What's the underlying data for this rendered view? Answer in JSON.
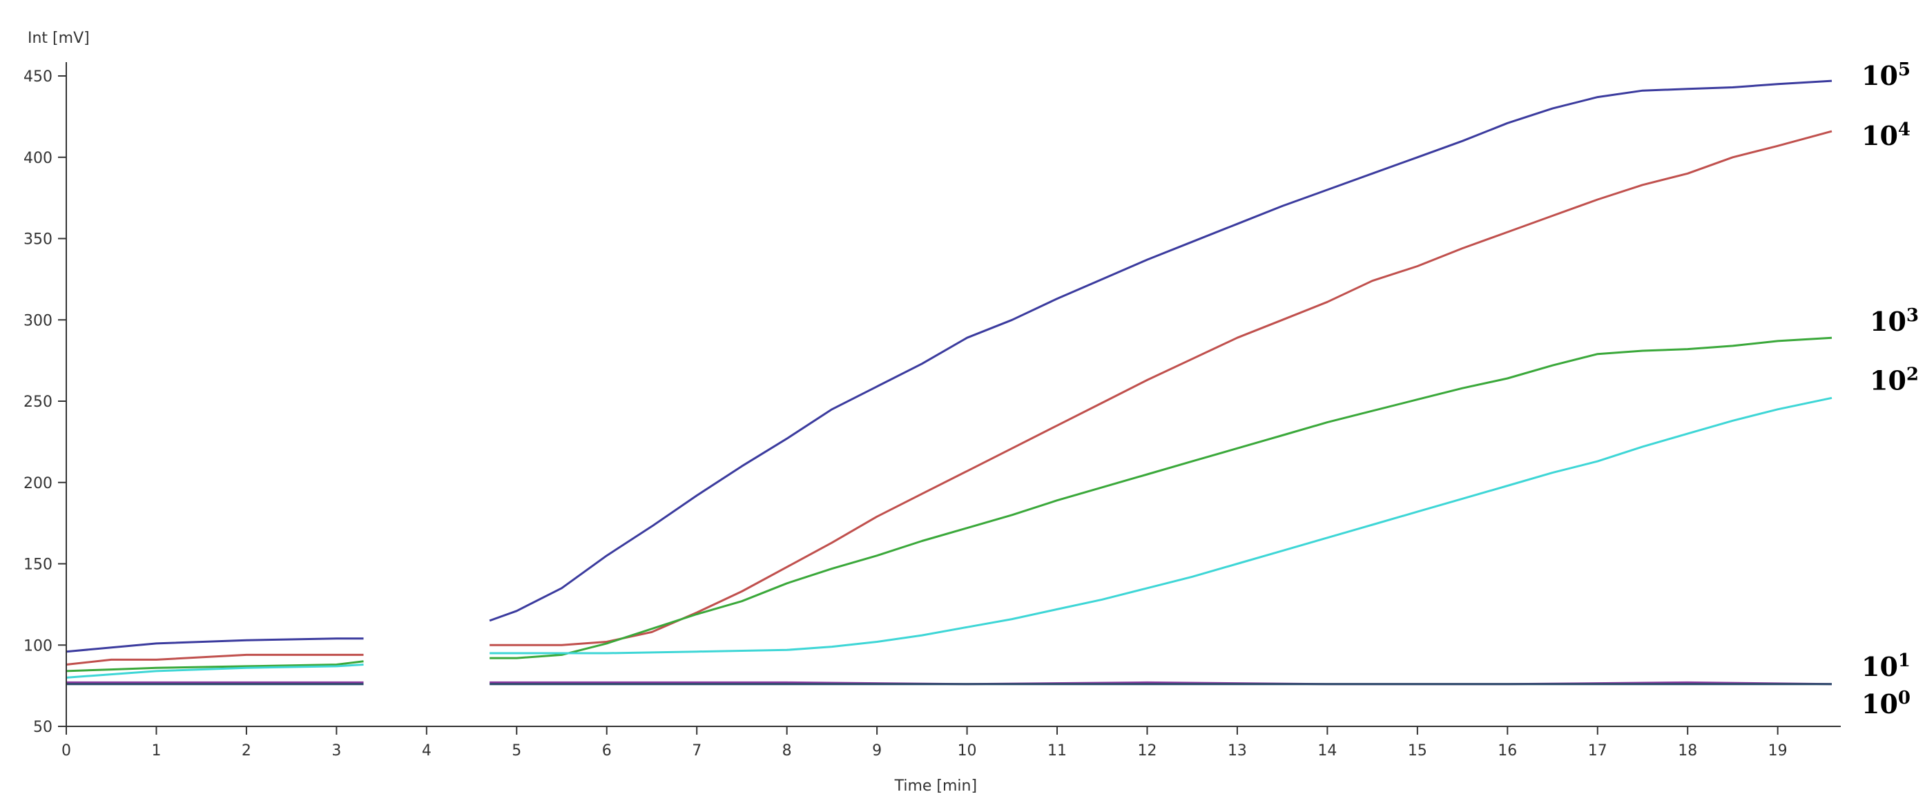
{
  "chart_data": {
    "type": "line",
    "xlabel": "Time [min]",
    "ylabel": "Int [mV]",
    "xlim": [
      0,
      19.7
    ],
    "ylim": [
      50,
      450
    ],
    "xticks": [
      0,
      1,
      2,
      3,
      4,
      5,
      6,
      7,
      8,
      9,
      10,
      11,
      12,
      13,
      14,
      15,
      16,
      17,
      18,
      19
    ],
    "yticks": [
      50,
      100,
      150,
      200,
      250,
      300,
      350,
      400,
      450
    ],
    "grid": false,
    "series": [
      {
        "name": "10^5",
        "label_base": "10",
        "label_exp": "5",
        "color": "#3b3b9e",
        "segments": [
          [
            [
              0,
              96
            ],
            [
              1,
              101
            ],
            [
              2,
              103
            ],
            [
              3,
              104
            ],
            [
              3.3,
              104
            ]
          ],
          [
            [
              4.7,
              115
            ],
            [
              5,
              121
            ],
            [
              5.5,
              135
            ],
            [
              6,
              155
            ],
            [
              6.5,
              173
            ],
            [
              7,
              192
            ],
            [
              7.5,
              210
            ],
            [
              8,
              227
            ],
            [
              8.5,
              245
            ],
            [
              9,
              259
            ],
            [
              9.5,
              273
            ],
            [
              10,
              289
            ],
            [
              10.5,
              300
            ],
            [
              11,
              313
            ],
            [
              11.5,
              325
            ],
            [
              12,
              337
            ],
            [
              12.5,
              348
            ],
            [
              13,
              359
            ],
            [
              13.5,
              370
            ],
            [
              14,
              380
            ],
            [
              14.5,
              390
            ],
            [
              15,
              400
            ],
            [
              15.5,
              410
            ],
            [
              16,
              421
            ],
            [
              16.5,
              430
            ],
            [
              17,
              437
            ],
            [
              17.5,
              441
            ],
            [
              18,
              442
            ],
            [
              18.5,
              443
            ],
            [
              19,
              445
            ],
            [
              19.6,
              447
            ]
          ]
        ]
      },
      {
        "name": "10^4",
        "label_base": "10",
        "label_exp": "4",
        "color": "#c0504d",
        "segments": [
          [
            [
              0,
              88
            ],
            [
              0.5,
              91
            ],
            [
              1,
              91
            ],
            [
              2,
              94
            ],
            [
              3,
              94
            ],
            [
              3.3,
              94
            ]
          ],
          [
            [
              4.7,
              100
            ],
            [
              5,
              100
            ],
            [
              5.5,
              100
            ],
            [
              6,
              102
            ],
            [
              6.5,
              108
            ],
            [
              7,
              120
            ],
            [
              7.5,
              133
            ],
            [
              8,
              148
            ],
            [
              8.5,
              163
            ],
            [
              9,
              179
            ],
            [
              9.5,
              193
            ],
            [
              10,
              207
            ],
            [
              10.5,
              221
            ],
            [
              11,
              235
            ],
            [
              11.5,
              249
            ],
            [
              12,
              263
            ],
            [
              12.5,
              276
            ],
            [
              13,
              289
            ],
            [
              13.5,
              300
            ],
            [
              14,
              311
            ],
            [
              14.5,
              324
            ],
            [
              15,
              333
            ],
            [
              15.5,
              344
            ],
            [
              16,
              354
            ],
            [
              16.5,
              364
            ],
            [
              17,
              374
            ],
            [
              17.5,
              383
            ],
            [
              18,
              390
            ],
            [
              18.5,
              400
            ],
            [
              19,
              407
            ],
            [
              19.6,
              416
            ]
          ]
        ]
      },
      {
        "name": "10^3",
        "label_base": "10",
        "label_exp": "3",
        "color": "#3aa83a",
        "segments": [
          [
            [
              0,
              84
            ],
            [
              0.5,
              85
            ],
            [
              1,
              86
            ],
            [
              2,
              87
            ],
            [
              3,
              88
            ],
            [
              3.3,
              90
            ]
          ],
          [
            [
              4.7,
              92
            ],
            [
              5,
              92
            ],
            [
              5.5,
              94
            ],
            [
              6,
              101
            ],
            [
              6.5,
              110
            ],
            [
              7,
              119
            ],
            [
              7.5,
              127
            ],
            [
              8,
              138
            ],
            [
              8.5,
              147
            ],
            [
              9,
              155
            ],
            [
              9.5,
              164
            ],
            [
              10,
              172
            ],
            [
              10.5,
              180
            ],
            [
              11,
              189
            ],
            [
              11.5,
              197
            ],
            [
              12,
              205
            ],
            [
              12.5,
              213
            ],
            [
              13,
              221
            ],
            [
              13.5,
              229
            ],
            [
              14,
              237
            ],
            [
              14.5,
              244
            ],
            [
              15,
              251
            ],
            [
              15.5,
              258
            ],
            [
              16,
              264
            ],
            [
              16.5,
              272
            ],
            [
              17,
              279
            ],
            [
              17.5,
              281
            ],
            [
              18,
              282
            ],
            [
              18.5,
              284
            ],
            [
              19,
              287
            ],
            [
              19.6,
              289
            ]
          ]
        ]
      },
      {
        "name": "10^2",
        "label_base": "10",
        "label_exp": "2",
        "color": "#3ed6d6",
        "segments": [
          [
            [
              0,
              80
            ],
            [
              0.5,
              82
            ],
            [
              1,
              84
            ],
            [
              2,
              86
            ],
            [
              3,
              87
            ],
            [
              3.3,
              88
            ]
          ],
          [
            [
              4.7,
              95
            ],
            [
              5,
              95
            ],
            [
              6,
              95
            ],
            [
              7,
              96
            ],
            [
              8,
              97
            ],
            [
              8.5,
              99
            ],
            [
              9,
              102
            ],
            [
              9.5,
              106
            ],
            [
              10,
              111
            ],
            [
              10.5,
              116
            ],
            [
              11,
              122
            ],
            [
              11.5,
              128
            ],
            [
              12,
              135
            ],
            [
              12.5,
              142
            ],
            [
              13,
              150
            ],
            [
              13.5,
              158
            ],
            [
              14,
              166
            ],
            [
              14.5,
              174
            ],
            [
              15,
              182
            ],
            [
              15.5,
              190
            ],
            [
              16,
              198
            ],
            [
              16.5,
              206
            ],
            [
              17,
              213
            ],
            [
              17.5,
              222
            ],
            [
              18,
              230
            ],
            [
              18.5,
              238
            ],
            [
              19,
              245
            ],
            [
              19.6,
              252
            ]
          ]
        ]
      },
      {
        "name": "10^1",
        "label_base": "10",
        "label_exp": "1",
        "color": "#8a3aa0",
        "segments": [
          [
            [
              0,
              77
            ],
            [
              1,
              77
            ],
            [
              2,
              77
            ],
            [
              3,
              77
            ],
            [
              3.3,
              77
            ]
          ],
          [
            [
              4.7,
              77
            ],
            [
              6,
              77
            ],
            [
              8,
              77
            ],
            [
              10,
              76
            ],
            [
              12,
              77
            ],
            [
              14,
              76
            ],
            [
              16,
              76
            ],
            [
              18,
              77
            ],
            [
              19.6,
              76
            ]
          ]
        ]
      },
      {
        "name": "10^0",
        "label_base": "10",
        "label_exp": "0",
        "color": "#2b4a6a",
        "segments": [
          [
            [
              0,
              76
            ],
            [
              1,
              76
            ],
            [
              2,
              76
            ],
            [
              3,
              76
            ],
            [
              3.3,
              76
            ]
          ],
          [
            [
              4.7,
              76
            ],
            [
              6,
              76
            ],
            [
              8,
              76
            ],
            [
              10,
              76
            ],
            [
              12,
              76
            ],
            [
              14,
              76
            ],
            [
              16,
              76
            ],
            [
              18,
              76
            ],
            [
              19.6,
              76
            ]
          ]
        ]
      }
    ]
  }
}
